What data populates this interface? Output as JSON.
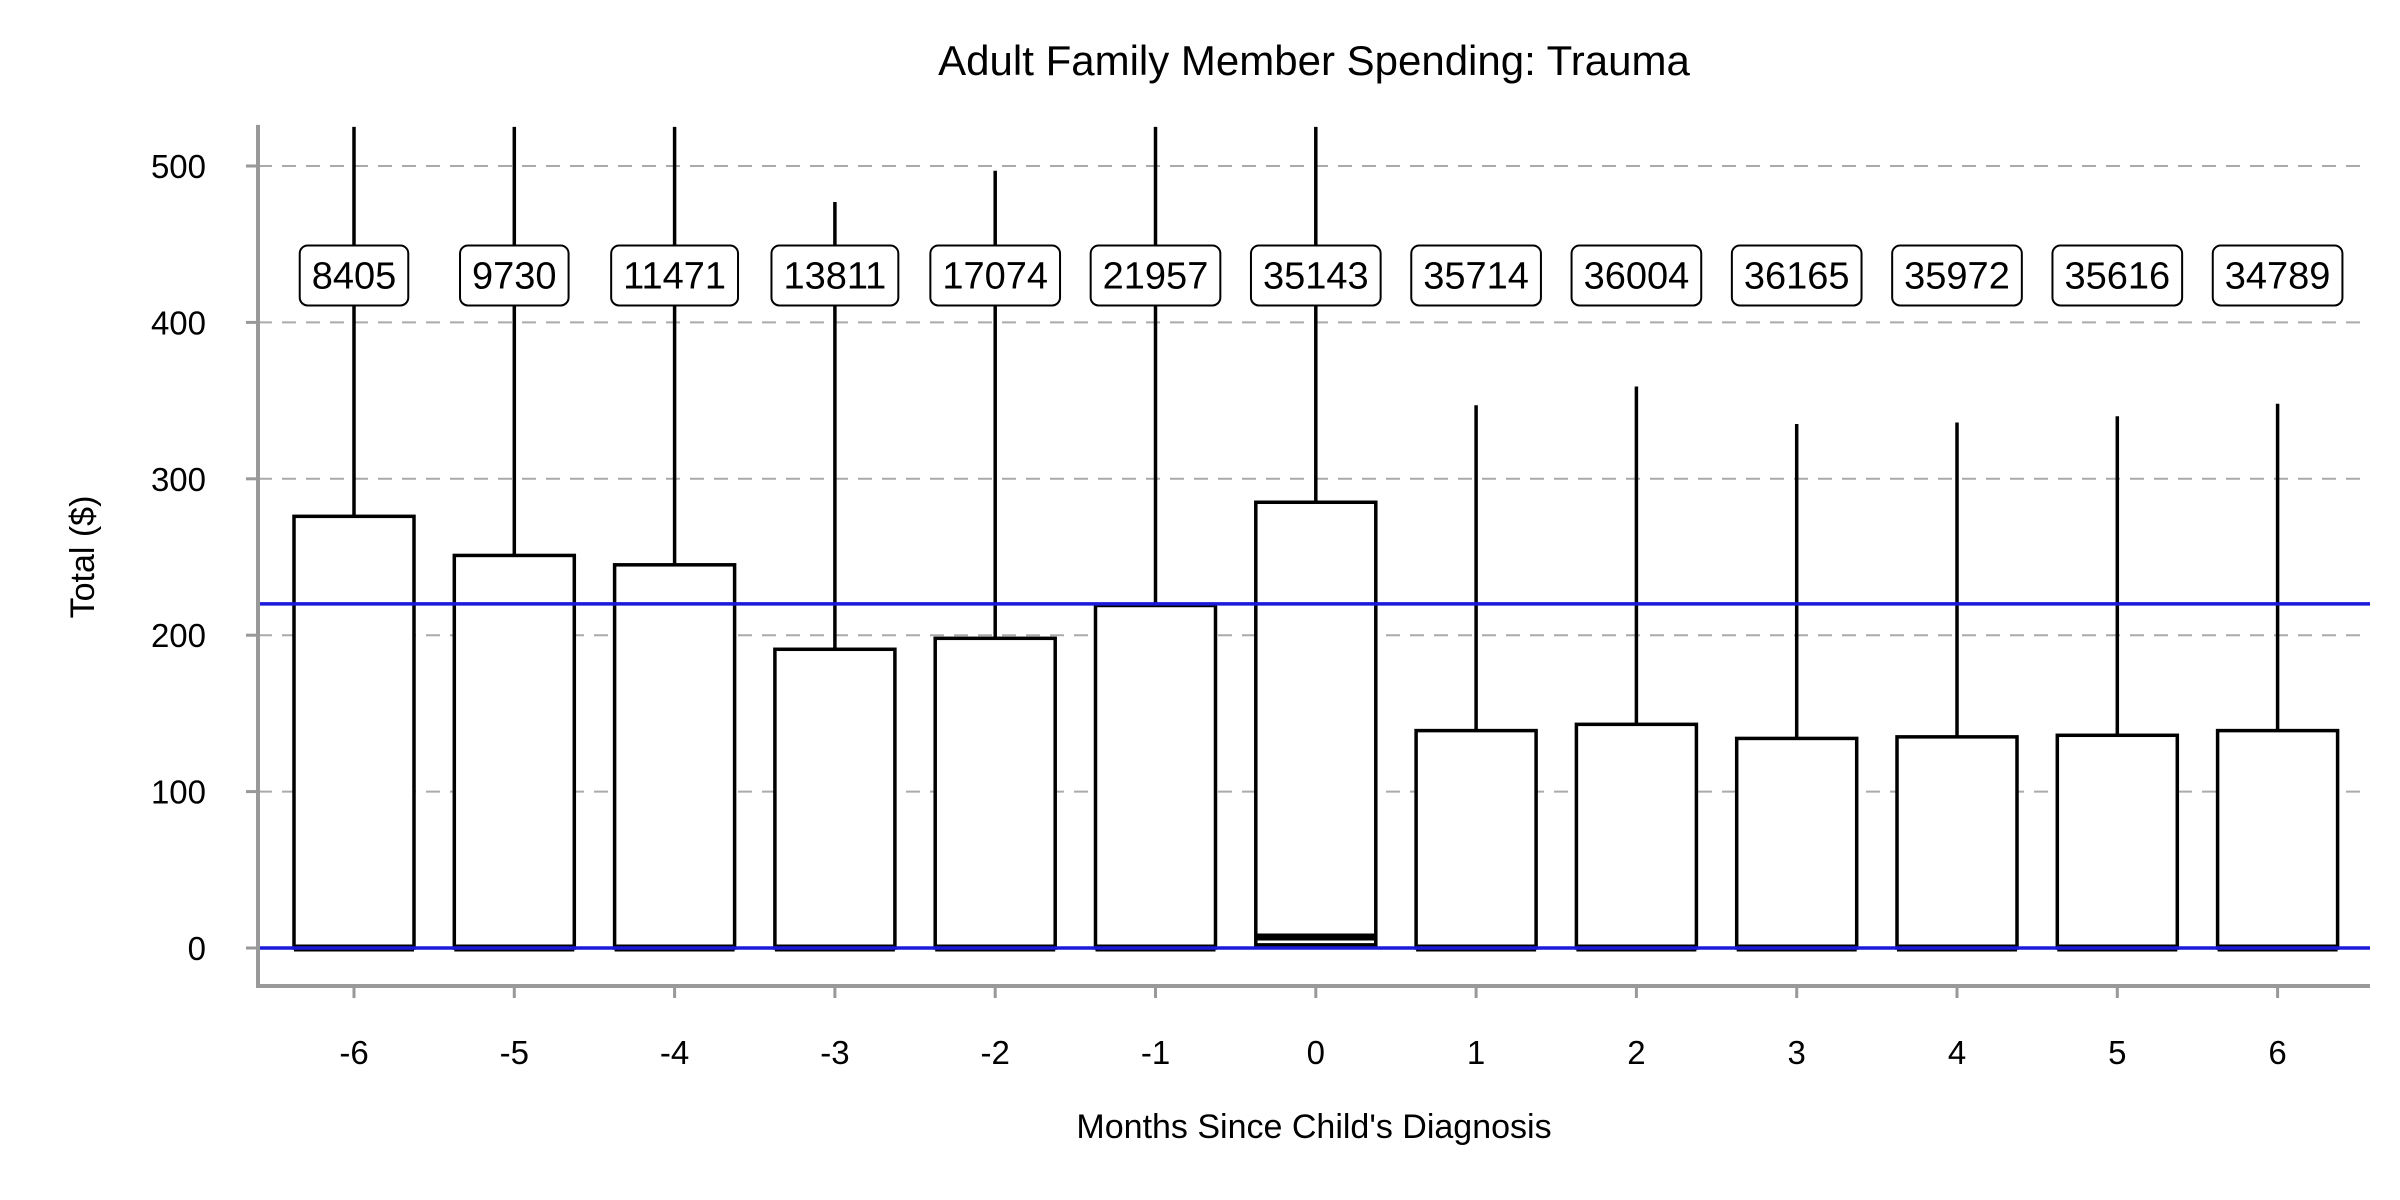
{
  "chart_data": {
    "type": "boxplot",
    "title": "Adult Family Member Spending: Trauma",
    "xlabel": "Months Since Child's Diagnosis",
    "ylabel": "Total ($)",
    "ylim": [
      -24,
      525
    ],
    "yticks": [
      0,
      100,
      200,
      300,
      400,
      500
    ],
    "grid": "horizontal dashed",
    "reference_lines": [
      220,
      0
    ],
    "colors": {
      "box": "#000000",
      "reference": "#1a1adb",
      "grid": "#aaaaaa",
      "axis": "#999999"
    },
    "categories": [
      "-6",
      "-5",
      "-4",
      "-3",
      "-2",
      "-1",
      "0",
      "1",
      "2",
      "3",
      "4",
      "5",
      "6"
    ],
    "counts": [
      "8405",
      "9730",
      "11471",
      "13811",
      "17074",
      "21957",
      "35143",
      "35714",
      "36004",
      "36165",
      "35972",
      "35616",
      "34789"
    ],
    "boxes": [
      {
        "q1": 0,
        "median": 0,
        "q3": 276,
        "whisker_low": 0,
        "whisker_high": 525
      },
      {
        "q1": 0,
        "median": 0,
        "q3": 251,
        "whisker_low": 0,
        "whisker_high": 525
      },
      {
        "q1": 0,
        "median": 0,
        "q3": 245,
        "whisker_low": 0,
        "whisker_high": 525
      },
      {
        "q1": 0,
        "median": 0,
        "q3": 191,
        "whisker_low": 0,
        "whisker_high": 477
      },
      {
        "q1": 0,
        "median": 0,
        "q3": 198,
        "whisker_low": 0,
        "whisker_high": 497
      },
      {
        "q1": 0,
        "median": 0,
        "q3": 219,
        "whisker_low": 0,
        "whisker_high": 525
      },
      {
        "q1": 2,
        "median": 7,
        "q3": 285,
        "whisker_low": 2,
        "whisker_high": 525
      },
      {
        "q1": 0,
        "median": 0,
        "q3": 139,
        "whisker_low": 0,
        "whisker_high": 347
      },
      {
        "q1": 0,
        "median": 0,
        "q3": 143,
        "whisker_low": 0,
        "whisker_high": 359
      },
      {
        "q1": 0,
        "median": 0,
        "q3": 134,
        "whisker_low": 0,
        "whisker_high": 335
      },
      {
        "q1": 0,
        "median": 0,
        "q3": 135,
        "whisker_low": 0,
        "whisker_high": 336
      },
      {
        "q1": 0,
        "median": 0,
        "q3": 136,
        "whisker_low": 0,
        "whisker_high": 340
      },
      {
        "q1": 0,
        "median": 0,
        "q3": 139,
        "whisker_low": 0,
        "whisker_high": 348
      }
    ]
  }
}
